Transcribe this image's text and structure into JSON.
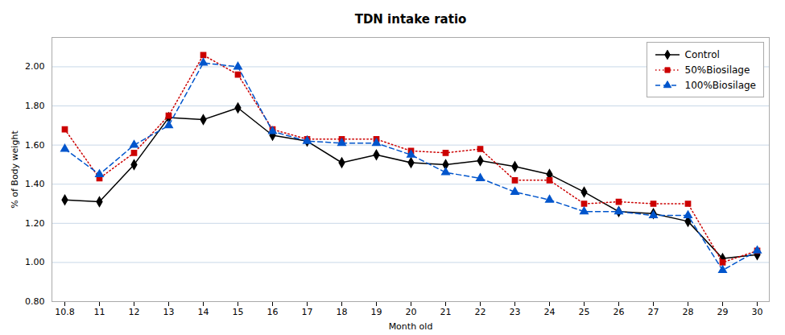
{
  "chart_data": {
    "type": "line",
    "title": "TDN intake ratio",
    "xlabel": "Month old",
    "ylabel": "% of Body weight",
    "categories": [
      "10.8",
      "11",
      "12",
      "13",
      "14",
      "15",
      "16",
      "17",
      "18",
      "19",
      "20",
      "21",
      "22",
      "23",
      "24",
      "25",
      "26",
      "27",
      "28",
      "29",
      "30"
    ],
    "series": [
      {
        "name": "Control",
        "color": "#000000",
        "marker": "diamond",
        "line_style": "solid",
        "values": [
          1.32,
          1.31,
          1.5,
          1.74,
          1.73,
          1.79,
          1.65,
          1.62,
          1.51,
          1.55,
          1.51,
          1.5,
          1.52,
          1.49,
          1.45,
          1.36,
          1.26,
          1.25,
          1.21,
          1.02,
          1.04
        ]
      },
      {
        "name": "50%Biosilage",
        "color": "#cc0000",
        "marker": "square",
        "line_style": "dotted",
        "values": [
          1.68,
          1.43,
          1.56,
          1.75,
          2.06,
          1.96,
          1.68,
          1.63,
          1.63,
          1.63,
          1.57,
          1.56,
          1.58,
          1.42,
          1.42,
          1.3,
          1.31,
          1.3,
          1.3,
          1.0,
          1.06
        ]
      },
      {
        "name": "100%Biosilage",
        "color": "#0055cc",
        "marker": "triangle",
        "line_style": "dashed",
        "values": [
          1.58,
          1.45,
          1.6,
          1.7,
          2.02,
          2.0,
          1.67,
          1.62,
          1.61,
          1.61,
          1.55,
          1.46,
          1.43,
          1.36,
          1.32,
          1.26,
          1.26,
          1.24,
          1.24,
          0.96,
          1.06
        ]
      }
    ],
    "ylim": [
      0.8,
      2.15
    ],
    "yticks": [
      {
        "value": 0.8,
        "label": "0.80"
      },
      {
        "value": 1.0,
        "label": "1.00"
      },
      {
        "value": 1.2,
        "label": "1.20"
      },
      {
        "value": 1.4,
        "label": "1.40"
      },
      {
        "value": 1.6,
        "label": "1.60"
      },
      {
        "value": 1.8,
        "label": "1.80"
      },
      {
        "value": 2.0,
        "label": "2.00"
      }
    ],
    "grid": true,
    "legend": "upper right"
  }
}
